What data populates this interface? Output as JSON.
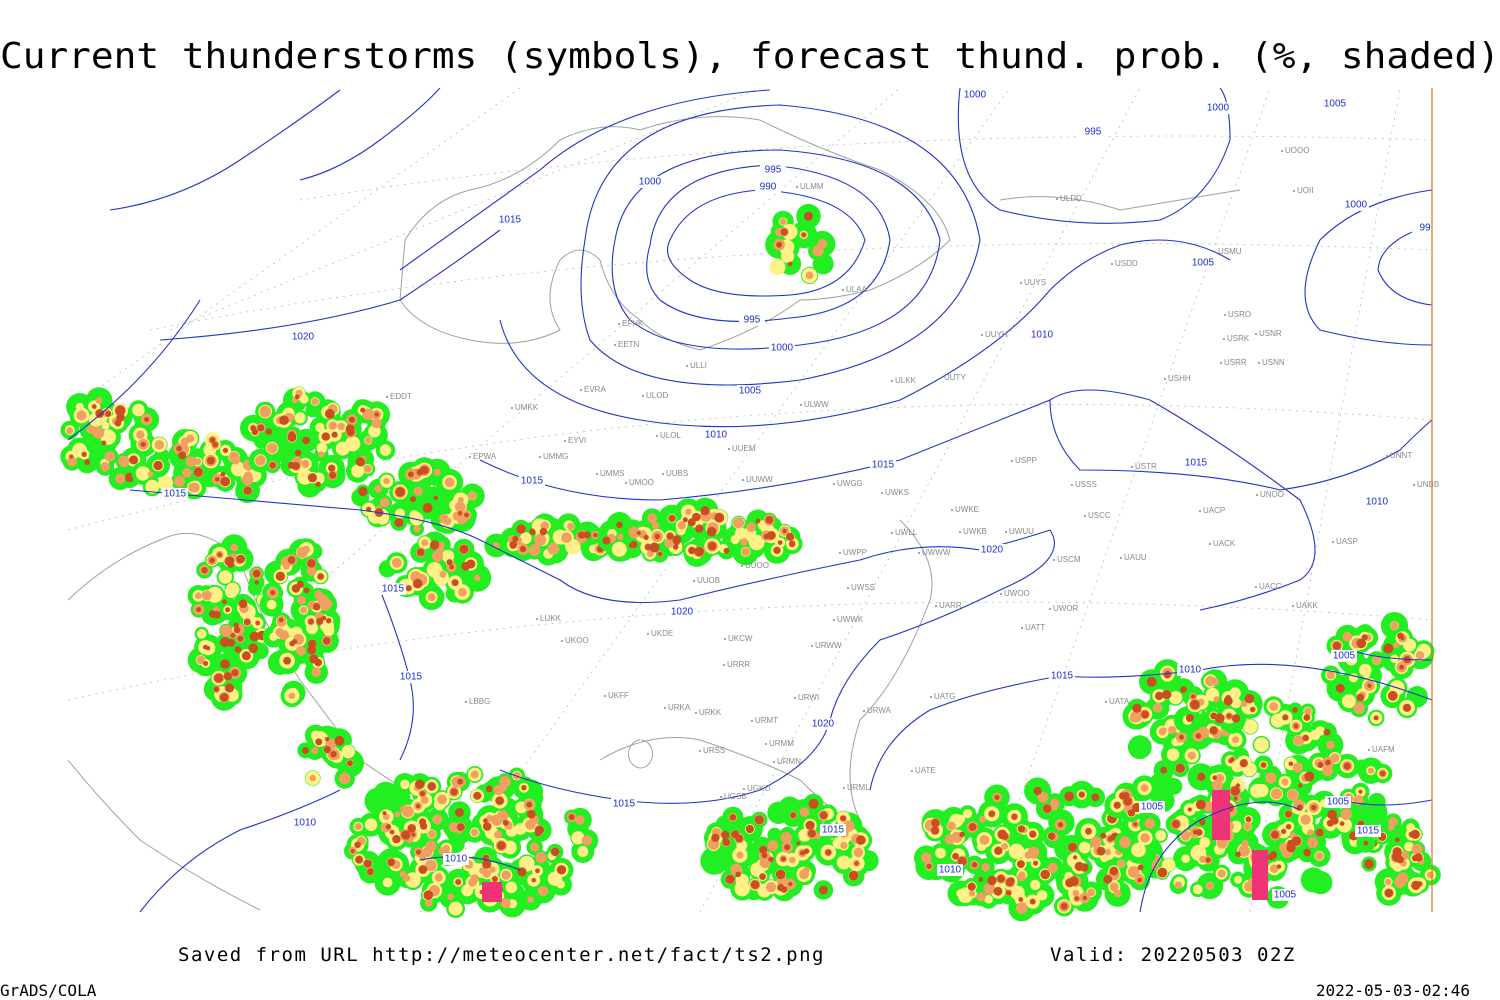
{
  "header": {
    "title": "Current thunderstorms (symbols), forecast thund. prob. (%, shaded)"
  },
  "footer": {
    "source": "Saved from URL http://meteocenter.net/fact/ts2.png",
    "valid": "Valid: 20220503 02Z",
    "credit": "GrADS/COLA",
    "timestamp": "2022-05-03-02:46"
  },
  "map": {
    "isobar_labels": [
      "1000",
      "1000",
      "1005",
      "995",
      "1000",
      "99",
      "1015",
      "1000",
      "995",
      "990",
      "1005",
      "995",
      "1000",
      "1005",
      "1010",
      "1020",
      "1010",
      "1015",
      "1015",
      "1010",
      "1015",
      "1015",
      "1020",
      "1015",
      "1020",
      "1015",
      "1015",
      "1010",
      "1005",
      "1020",
      "1015",
      "1010",
      "1010",
      "1015",
      "1010",
      "1005",
      "1005",
      "1015",
      "1005"
    ],
    "stations": [
      "ULMM",
      "ULDD",
      "UOOO",
      "UOII",
      "USDD",
      "USMU",
      "ULAA",
      "UUYS",
      "EFHK",
      "EETN",
      "USRO",
      "USRK",
      "USNR",
      "USRR",
      "USNN",
      "UUYH",
      "ULLI",
      "ULKK",
      "UUTY",
      "USHH",
      "EVRA",
      "ULOD",
      "ULWW",
      "EDDT",
      "UMKK",
      "ULOL",
      "EYVI",
      "UUEM",
      "EPWA",
      "UMMG",
      "USPP",
      "USTR",
      "UMMS",
      "UUBS",
      "UMOO",
      "UUWW",
      "UWGG",
      "USSS",
      "UWKS",
      "UNNT",
      "UNBB",
      "UNOO",
      "UWKE",
      "USCC",
      "UACP",
      "UWKB",
      "UWLL",
      "UWUU",
      "UACK",
      "UASP",
      "UWPP",
      "UWWW",
      "USCM",
      "UAUU",
      "UUOO",
      "UUOB",
      "UWSS",
      "UACC",
      "UARR",
      "UWOO",
      "UWOR",
      "UAKK",
      "LUKK",
      "UKDE",
      "UWWK",
      "UATT",
      "UKOO",
      "UKCW",
      "URWW",
      "URRR",
      "UKFF",
      "UATG",
      "UATA",
      "URWI",
      "LBBG",
      "URKA",
      "URKK",
      "URWA",
      "URMT",
      "UAFM",
      "URSS",
      "URMM",
      "UATE",
      "URMN",
      "UGKO",
      "URML",
      "UGSB"
    ]
  }
}
